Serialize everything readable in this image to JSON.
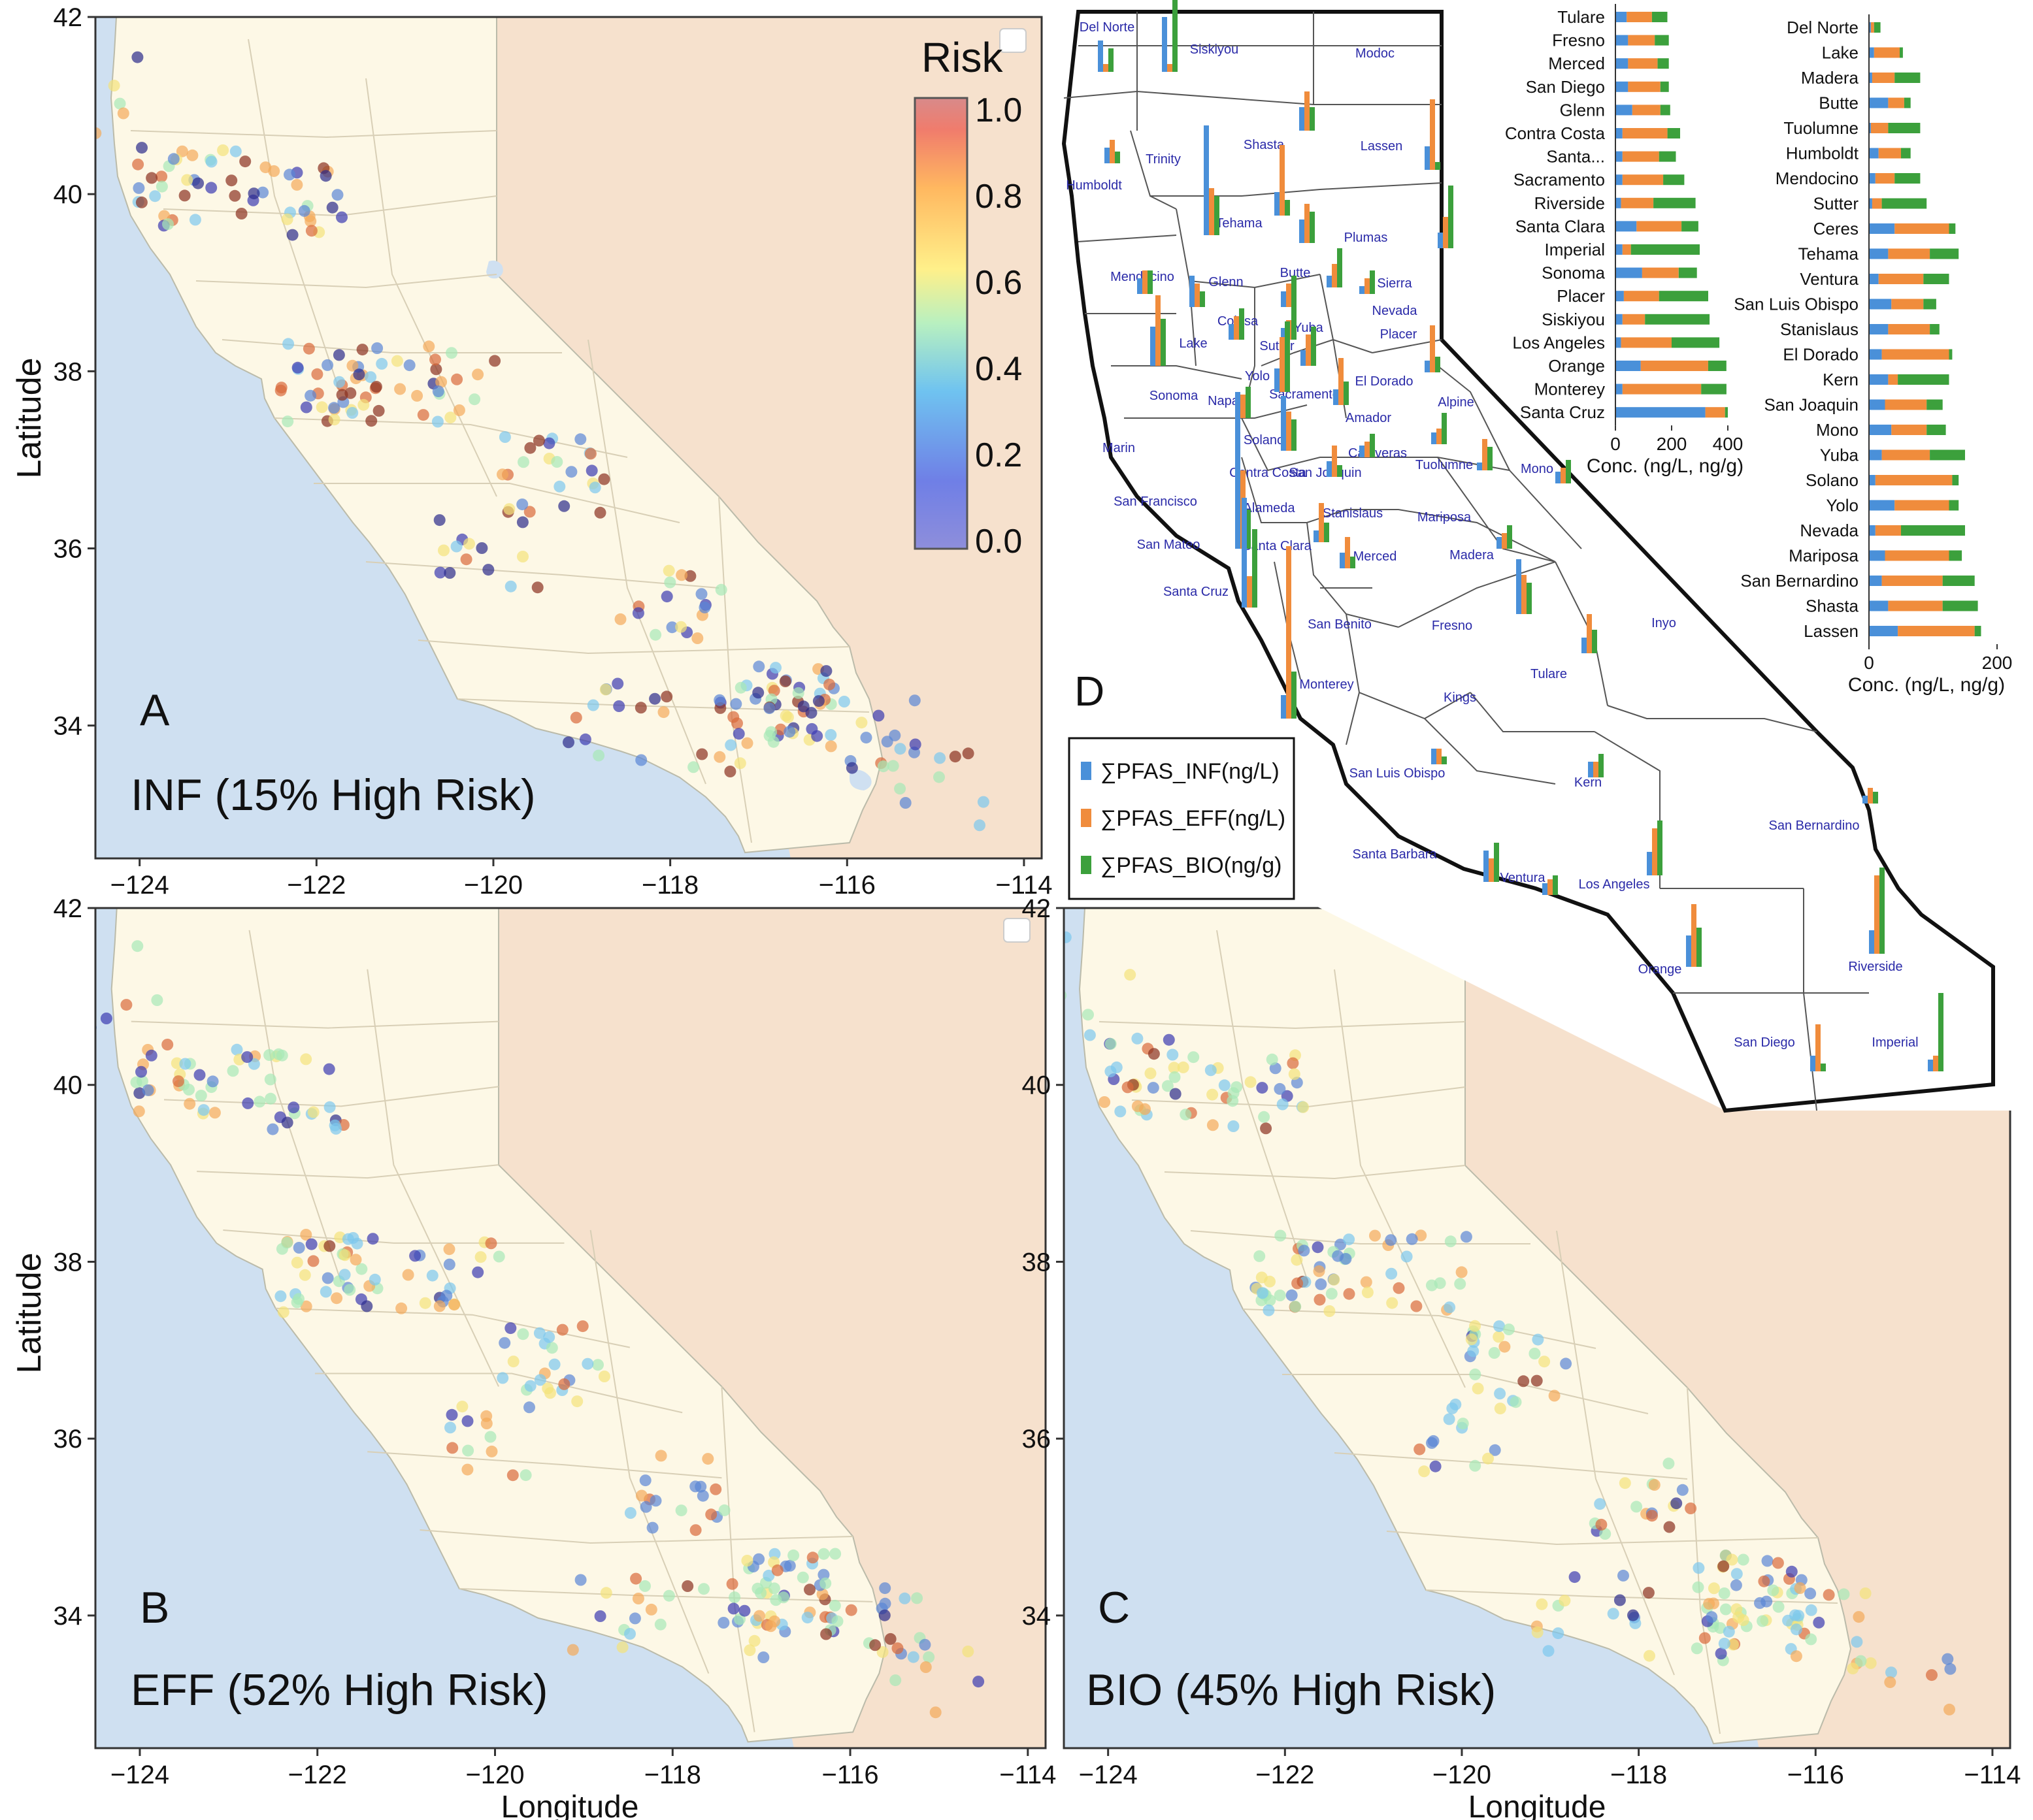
{
  "colors": {
    "ocean": "#cfe0f1",
    "land": "#fdf8e6",
    "out_state": "#f6e1cd",
    "border": "#5b5b5b",
    "INF": "#4a90d9",
    "EFF": "#f08c3c",
    "BIO": "#3ca03c",
    "county_label": "#2a2aa8"
  },
  "panels": {
    "A": {
      "letter": "A",
      "label": "INF (15% High Risk)"
    },
    "B": {
      "letter": "B",
      "label": "EFF (52% High Risk)"
    },
    "C": {
      "letter": "C",
      "label": "BIO (45% High Risk)"
    },
    "D": {
      "letter": "D"
    }
  },
  "axes": {
    "ylabel": "Latitude",
    "xlabel": "Longitude",
    "x_ticks": [
      "−124",
      "−122",
      "−120",
      "−118",
      "−116",
      "−114"
    ],
    "y_ticks": [
      "42",
      "40",
      "38",
      "36",
      "34"
    ]
  },
  "colorbar": {
    "title": "Risk",
    "ticks": [
      "1.0",
      "0.8",
      "0.6",
      "0.4",
      "0.2",
      "0.0"
    ],
    "colormap": [
      "#8e8edb",
      "#6f7fe6",
      "#6fc3f0",
      "#b8f0c0",
      "#fff08a",
      "#ffb860",
      "#f07c6c",
      "#d88a8a"
    ]
  },
  "legend": {
    "items": [
      {
        "key": "INF",
        "label": "∑PFAS_INF(ng/L)"
      },
      {
        "key": "EFF",
        "label": "∑PFAS_EFF(ng/L)"
      },
      {
        "key": "BIO",
        "label": "∑PFAS_BIO(ng/g)"
      }
    ]
  },
  "chart_data": [
    {
      "type": "scatter",
      "panel": "A",
      "title": "INF (15% High Risk)",
      "xlabel": "",
      "ylabel": "Latitude",
      "xlim": [
        -124.5,
        -113.8
      ],
      "ylim": [
        32.5,
        42
      ]
    },
    {
      "type": "scatter",
      "panel": "B",
      "title": "EFF (52% High Risk)",
      "xlabel": "Longitude",
      "ylabel": "Latitude",
      "xlim": [
        -124.5,
        -113.8
      ],
      "ylim": [
        32.5,
        42
      ]
    },
    {
      "type": "scatter",
      "panel": "C",
      "title": "BIO (45% High Risk)",
      "xlabel": "Longitude",
      "ylabel": "",
      "xlim": [
        -124.5,
        -113.8
      ],
      "ylim": [
        32.5,
        42
      ]
    },
    {
      "type": "bar",
      "orientation": "horizontal",
      "stacked": true,
      "xlabel": "Conc. (ng/L, ng/g)",
      "x_ticks": [
        "0",
        "200",
        "400"
      ],
      "xlim": [
        0,
        400
      ],
      "categories": [
        "Tulare",
        "Fresno",
        "Merced",
        "San Diego",
        "Glenn",
        "Contra Costa",
        "Santa...",
        "Sacramento",
        "Riverside",
        "Santa Clara",
        "Imperial",
        "Sonoma",
        "Placer",
        "Siskiyou",
        "Los Angeles",
        "Orange",
        "Monterey",
        "Santa Cruz"
      ],
      "series": [
        {
          "name": "∑PFAS_INF(ng/L)",
          "values": [
            40,
            45,
            45,
            45,
            60,
            25,
            25,
            25,
            20,
            75,
            25,
            95,
            30,
            25,
            20,
            90,
            25,
            320
          ]
        },
        {
          "name": "∑PFAS_EFF(ng/L)",
          "values": [
            90,
            95,
            105,
            115,
            100,
            160,
            130,
            145,
            115,
            160,
            30,
            130,
            125,
            80,
            180,
            240,
            280,
            70
          ]
        },
        {
          "name": "∑PFAS_BIO(ng/g)",
          "values": [
            55,
            50,
            40,
            30,
            35,
            45,
            60,
            75,
            150,
            60,
            245,
            65,
            175,
            230,
            170,
            65,
            90,
            10
          ]
        }
      ]
    },
    {
      "type": "bar",
      "orientation": "horizontal",
      "stacked": true,
      "xlabel": "Conc. (ng/L, ng/g)",
      "x_ticks": [
        "0",
        "200"
      ],
      "xlim": [
        0,
        200
      ],
      "categories": [
        "Del Norte",
        "Lake",
        "Madera",
        "Butte",
        "Tuolumne",
        "Humboldt",
        "Mendocino",
        "Sutter",
        "Ceres",
        "Tehama",
        "Ventura",
        "San Luis Obispo",
        "Stanislaus",
        "El Dorado",
        "Kern",
        "San Joaquin",
        "Mono",
        "Yuba",
        "Solano",
        "Yolo",
        "Nevada",
        "Mariposa",
        "San Bernardino",
        "Shasta",
        "Lassen"
      ],
      "series": [
        {
          "name": "∑PFAS_INF(ng/L)",
          "values": [
            3,
            8,
            5,
            30,
            3,
            15,
            10,
            5,
            40,
            30,
            15,
            35,
            30,
            20,
            30,
            25,
            35,
            20,
            10,
            40,
            10,
            25,
            20,
            30,
            45
          ]
        },
        {
          "name": "∑PFAS_EFF(ng/L)",
          "values": [
            5,
            40,
            35,
            25,
            27,
            35,
            30,
            15,
            85,
            65,
            70,
            50,
            65,
            105,
            15,
            65,
            55,
            75,
            120,
            85,
            40,
            100,
            95,
            85,
            120
          ]
        },
        {
          "name": "∑PFAS_BIO(ng/g)",
          "values": [
            10,
            5,
            40,
            10,
            50,
            15,
            40,
            70,
            10,
            45,
            40,
            20,
            15,
            5,
            80,
            25,
            30,
            55,
            10,
            15,
            100,
            20,
            50,
            55,
            10
          ]
        }
      ]
    }
  ],
  "county_map": {
    "labels": [
      "Del Norte",
      "Siskiyou",
      "Modoc",
      "Humboldt",
      "Trinity",
      "Shasta",
      "Lassen",
      "Tehama",
      "Plumas",
      "Mendocino",
      "Glenn",
      "Butte",
      "Sierra",
      "Nevada",
      "Colusa",
      "Lake",
      "Sutter",
      "Yuba",
      "Placer",
      "Yolo",
      "Sonoma",
      "Napa",
      "Sacramento",
      "El Dorado",
      "Alpine",
      "Amador",
      "Solano",
      "Marin",
      "Contra Costa",
      "San Joaquin",
      "Calaveras",
      "Tuolumne",
      "Mono",
      "San Francisco",
      "Alameda",
      "Stanislaus",
      "San Mateo",
      "Santa Clara",
      "Merced",
      "Mariposa",
      "Madera",
      "Santa Cruz",
      "San Benito",
      "Fresno",
      "Inyo",
      "Monterey",
      "Kings",
      "Tulare",
      "San Luis Obispo",
      "Kern",
      "San Bernardino",
      "Santa Barbara",
      "Ventura",
      "Los Angeles",
      "Orange",
      "Riverside",
      "San Diego",
      "Imperial"
    ]
  }
}
